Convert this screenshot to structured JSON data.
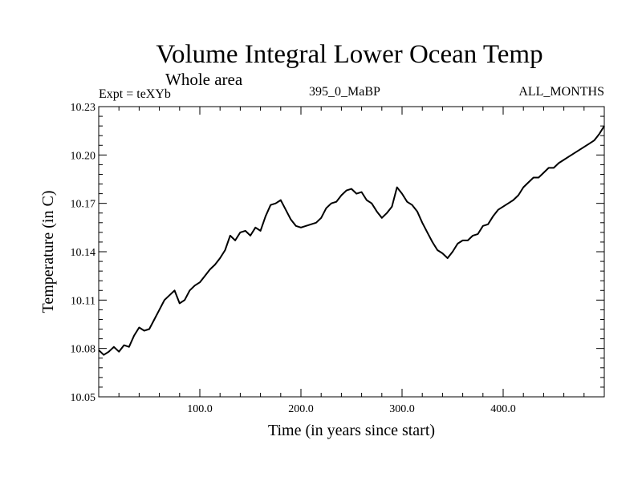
{
  "header": {
    "title": "Volume Integral Lower Ocean Temp",
    "subtitle": "Whole area",
    "expt": "Expt = teXYb",
    "center_label": "395_0_MaBP",
    "right_label": "ALL_MONTHS"
  },
  "chart_data": {
    "type": "line",
    "title": "Volume Integral Lower Ocean Temp",
    "subtitle": "Whole area",
    "xlabel": "Time (in years since start)",
    "ylabel": "Temperature (in C)",
    "xlim": [
      0,
      500
    ],
    "ylim": [
      10.05,
      10.23
    ],
    "x_ticks": [
      100,
      200,
      300,
      400
    ],
    "x_tick_labels": [
      "100.0",
      "200.0",
      "300.0",
      "400.0"
    ],
    "y_ticks": [
      10.05,
      10.08,
      10.11,
      10.14,
      10.17,
      10.2,
      10.23
    ],
    "y_tick_labels": [
      "10.05",
      "10.08",
      "10.11",
      "10.14",
      "10.17",
      "10.20",
      "10.23"
    ],
    "grid": false,
    "line_color": "#000000",
    "series": [
      {
        "x": [
          0,
          5,
          10,
          15,
          20,
          25,
          30,
          35,
          40,
          45,
          50,
          55,
          60,
          65,
          70,
          75,
          80,
          85,
          90,
          95,
          100,
          105,
          110,
          115,
          120,
          125,
          130,
          135,
          140,
          145,
          150,
          155,
          160,
          165,
          170,
          175,
          180,
          185,
          190,
          195,
          200,
          205,
          210,
          215,
          220,
          225,
          230,
          235,
          240,
          245,
          250,
          255,
          260,
          265,
          270,
          275,
          280,
          285,
          290,
          295,
          300,
          305,
          310,
          315,
          320,
          325,
          330,
          335,
          340,
          345,
          350,
          355,
          360,
          365,
          370,
          375,
          380,
          385,
          390,
          395,
          400,
          405,
          410,
          415,
          420,
          425,
          430,
          435,
          440,
          445,
          450,
          455,
          460,
          465,
          470,
          475,
          480,
          485,
          490,
          495,
          500
        ],
        "values": [
          10.079,
          10.076,
          10.078,
          10.081,
          10.078,
          10.082,
          10.081,
          10.088,
          10.093,
          10.091,
          10.092,
          10.098,
          10.104,
          10.11,
          10.113,
          10.116,
          10.108,
          10.11,
          10.116,
          10.119,
          10.121,
          10.125,
          10.129,
          10.132,
          10.136,
          10.141,
          10.15,
          10.147,
          10.152,
          10.153,
          10.15,
          10.155,
          10.153,
          10.162,
          10.169,
          10.17,
          10.172,
          10.166,
          10.16,
          10.156,
          10.155,
          10.156,
          10.157,
          10.158,
          10.161,
          10.167,
          10.17,
          10.171,
          10.175,
          10.178,
          10.179,
          10.176,
          10.177,
          10.172,
          10.17,
          10.165,
          10.161,
          10.164,
          10.168,
          10.18,
          10.176,
          10.171,
          10.169,
          10.165,
          10.158,
          10.152,
          10.146,
          10.141,
          10.139,
          10.136,
          10.14,
          10.145,
          10.147,
          10.147,
          10.15,
          10.151,
          10.156,
          10.157,
          10.162,
          10.166,
          10.168,
          10.17,
          10.172,
          10.175,
          10.18,
          10.183,
          10.186,
          10.186,
          10.189,
          10.192,
          10.192,
          10.195,
          10.197,
          10.199,
          10.201,
          10.203,
          10.205,
          10.207,
          10.209,
          10.213,
          10.218
        ]
      }
    ]
  }
}
